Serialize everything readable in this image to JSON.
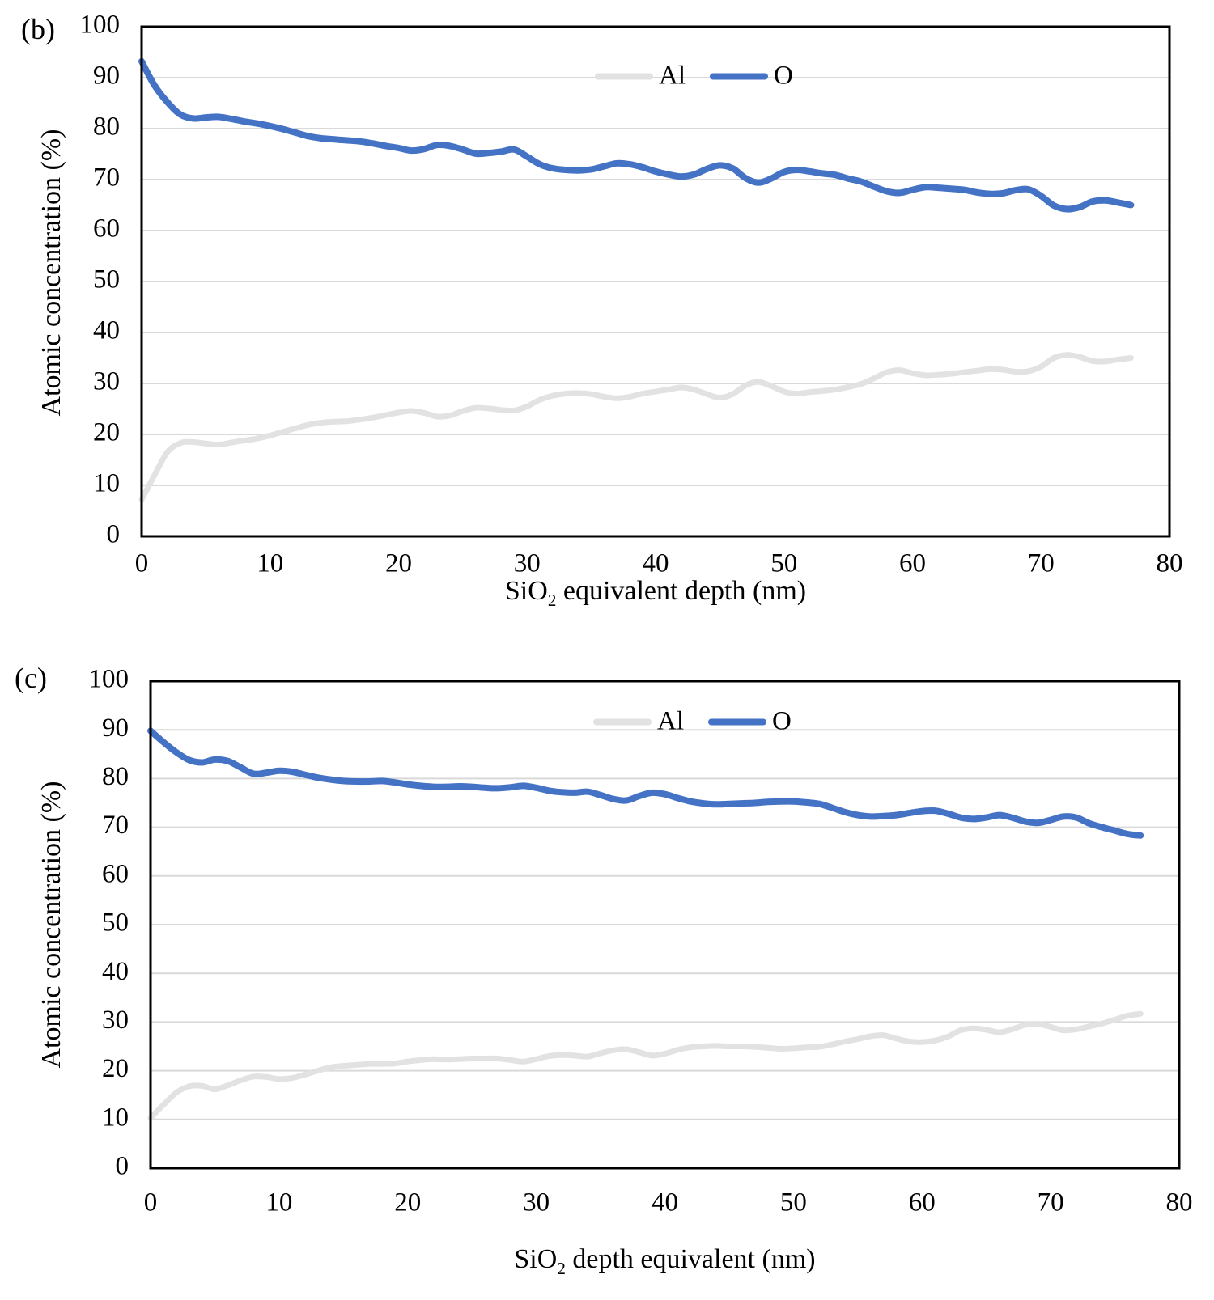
{
  "figure": {
    "background": "#ffffff",
    "axis_color": "#000000",
    "gridline_color": "#d9d9d9"
  },
  "chart_data": [
    {
      "type": "line",
      "panel_label": "(b)",
      "xlabel": "SiO2 equivalent depth (nm)",
      "xlabel_parts": {
        "pre": "SiO",
        "sub": "2",
        "post": " equivalent depth (nm)"
      },
      "ylabel": "Atomic concentration (%)",
      "xlim": [
        0,
        80
      ],
      "ylim": [
        0,
        100
      ],
      "xticks": [
        0,
        10,
        20,
        30,
        40,
        50,
        60,
        70,
        80
      ],
      "yticks": [
        0,
        10,
        20,
        30,
        40,
        50,
        60,
        70,
        80,
        90,
        100
      ],
      "grid": "horizontal",
      "legend_position": "top-center-inside",
      "x": [
        0,
        1,
        2,
        3,
        4,
        5,
        6,
        7,
        8,
        9,
        10,
        11,
        12,
        13,
        14,
        15,
        16,
        17,
        18,
        19,
        20,
        21,
        22,
        23,
        24,
        25,
        26,
        27,
        28,
        29,
        30,
        31,
        32,
        33,
        34,
        35,
        36,
        37,
        38,
        39,
        40,
        41,
        42,
        43,
        44,
        45,
        46,
        47,
        48,
        49,
        50,
        51,
        52,
        53,
        54,
        55,
        56,
        57,
        58,
        59,
        60,
        61,
        62,
        63,
        64,
        65,
        66,
        67,
        68,
        69,
        70,
        71,
        72,
        73,
        74,
        75,
        76,
        77
      ],
      "series": [
        {
          "name": "Al",
          "color": "#e2e2e2",
          "values": [
            7.2,
            12.0,
            16.5,
            18.3,
            18.5,
            18.2,
            18.0,
            18.4,
            18.8,
            19.2,
            19.8,
            20.5,
            21.2,
            21.9,
            22.3,
            22.5,
            22.6,
            22.9,
            23.3,
            23.8,
            24.3,
            24.6,
            24.2,
            23.5,
            23.7,
            24.6,
            25.2,
            25.1,
            24.8,
            24.7,
            25.5,
            26.8,
            27.6,
            28.0,
            28.1,
            27.9,
            27.4,
            27.1,
            27.4,
            28.0,
            28.4,
            28.8,
            29.2,
            28.8,
            27.9,
            27.2,
            27.9,
            29.6,
            30.3,
            29.5,
            28.4,
            28.0,
            28.3,
            28.5,
            28.8,
            29.3,
            29.9,
            31.0,
            32.2,
            32.6,
            32.0,
            31.6,
            31.7,
            31.9,
            32.2,
            32.5,
            32.8,
            32.7,
            32.3,
            32.4,
            33.3,
            35.0,
            35.6,
            35.2,
            34.4,
            34.3,
            34.7,
            35.0
          ]
        },
        {
          "name": "O",
          "color": "#4472c4",
          "values": [
            93.2,
            88.5,
            85.2,
            82.8,
            82.0,
            82.2,
            82.3,
            81.9,
            81.4,
            81.0,
            80.5,
            79.9,
            79.2,
            78.5,
            78.1,
            77.9,
            77.7,
            77.5,
            77.1,
            76.6,
            76.2,
            75.7,
            76.0,
            76.8,
            76.6,
            75.9,
            75.1,
            75.2,
            75.5,
            75.9,
            74.5,
            73.0,
            72.2,
            71.9,
            71.8,
            72.0,
            72.6,
            73.2,
            73.0,
            72.4,
            71.6,
            71.0,
            70.6,
            71.0,
            72.1,
            72.8,
            72.2,
            70.3,
            69.4,
            70.2,
            71.5,
            71.9,
            71.6,
            71.2,
            70.9,
            70.2,
            69.6,
            68.6,
            67.7,
            67.4,
            68.0,
            68.5,
            68.4,
            68.2,
            68.0,
            67.5,
            67.2,
            67.3,
            67.9,
            68.1,
            66.8,
            64.9,
            64.2,
            64.6,
            65.7,
            65.9,
            65.5,
            65.0
          ]
        }
      ]
    },
    {
      "type": "line",
      "panel_label": "(c)",
      "xlabel": "SiO2 depth equivalent (nm)",
      "xlabel_parts": {
        "pre": "SiO",
        "sub": "2",
        "post": " depth equivalent (nm)"
      },
      "ylabel": "Atomic concentration (%)",
      "xlim": [
        0,
        80
      ],
      "ylim": [
        0,
        100
      ],
      "xticks": [
        0,
        10,
        20,
        30,
        40,
        50,
        60,
        70,
        80
      ],
      "yticks": [
        0,
        10,
        20,
        30,
        40,
        50,
        60,
        70,
        80,
        90,
        100
      ],
      "grid": "horizontal",
      "legend_position": "top-center-inside",
      "x": [
        0,
        1,
        2,
        3,
        4,
        5,
        6,
        7,
        8,
        9,
        10,
        11,
        12,
        13,
        14,
        15,
        16,
        17,
        18,
        19,
        20,
        21,
        22,
        23,
        24,
        25,
        26,
        27,
        28,
        29,
        30,
        31,
        32,
        33,
        34,
        35,
        36,
        37,
        38,
        39,
        40,
        41,
        42,
        43,
        44,
        45,
        46,
        47,
        48,
        49,
        50,
        51,
        52,
        53,
        54,
        55,
        56,
        57,
        58,
        59,
        60,
        61,
        62,
        63,
        64,
        65,
        66,
        67,
        68,
        69,
        70,
        71,
        72,
        73,
        74,
        75,
        76,
        77
      ],
      "series": [
        {
          "name": "Al",
          "color": "#e2e2e2",
          "values": [
            10.3,
            13.0,
            15.5,
            16.8,
            16.9,
            16.2,
            17.0,
            18.0,
            18.8,
            18.7,
            18.3,
            18.5,
            19.2,
            20.0,
            20.7,
            21.0,
            21.2,
            21.4,
            21.4,
            21.5,
            21.9,
            22.2,
            22.4,
            22.3,
            22.4,
            22.5,
            22.5,
            22.5,
            22.2,
            21.9,
            22.4,
            23.0,
            23.2,
            23.1,
            22.9,
            23.6,
            24.2,
            24.4,
            23.8,
            23.1,
            23.5,
            24.3,
            24.8,
            25.0,
            25.1,
            25.0,
            25.0,
            24.9,
            24.7,
            24.5,
            24.6,
            24.8,
            24.9,
            25.4,
            26.0,
            26.5,
            27.1,
            27.3,
            26.6,
            26.0,
            25.9,
            26.2,
            27.0,
            28.3,
            28.7,
            28.4,
            27.9,
            28.5,
            29.4,
            29.6,
            29.0,
            28.3,
            28.5,
            29.1,
            29.7,
            30.5,
            31.3,
            31.7
          ]
        },
        {
          "name": "O",
          "color": "#4472c4",
          "values": [
            89.8,
            87.5,
            85.4,
            83.8,
            83.3,
            83.9,
            83.6,
            82.3,
            81.0,
            81.2,
            81.6,
            81.4,
            80.8,
            80.2,
            79.8,
            79.5,
            79.4,
            79.4,
            79.5,
            79.2,
            78.8,
            78.5,
            78.3,
            78.3,
            78.4,
            78.3,
            78.1,
            78.0,
            78.2,
            78.5,
            78.1,
            77.5,
            77.2,
            77.1,
            77.3,
            76.6,
            75.8,
            75.5,
            76.4,
            77.1,
            76.8,
            76.0,
            75.3,
            74.9,
            74.7,
            74.8,
            74.9,
            75.0,
            75.2,
            75.3,
            75.3,
            75.1,
            74.8,
            74.0,
            73.1,
            72.5,
            72.2,
            72.3,
            72.5,
            72.9,
            73.3,
            73.4,
            72.8,
            72.0,
            71.7,
            72.0,
            72.5,
            72.0,
            71.2,
            70.9,
            71.5,
            72.2,
            72.0,
            70.8,
            70.0,
            69.3,
            68.6,
            68.3
          ]
        }
      ]
    }
  ]
}
